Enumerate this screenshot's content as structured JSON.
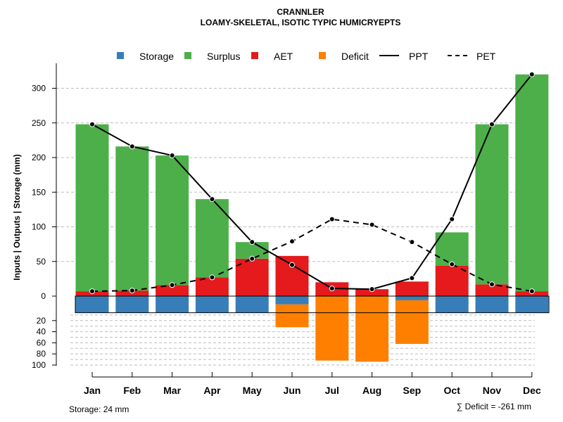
{
  "chart_data": {
    "type": "bar",
    "title": "CRANNLER",
    "subtitle": "LOAMY-SKELETAL, ISOTIC TYPIC HUMICRYEPTS",
    "ylabel": "Inputs | Outputs | Storage    (mm)",
    "categories": [
      "Jan",
      "Feb",
      "Mar",
      "Apr",
      "May",
      "Jun",
      "Jul",
      "Aug",
      "Sep",
      "Oct",
      "Nov",
      "Dec"
    ],
    "ylim": [
      -100,
      320
    ],
    "y_ticks": [
      300,
      250,
      200,
      150,
      100,
      50,
      0
    ],
    "y_ticks_negative": [
      20,
      40,
      60,
      80,
      100
    ],
    "legend": [
      "Storage",
      "Surplus",
      "AET",
      "Deficit",
      "PPT",
      "PET"
    ],
    "colors": {
      "storage": "#377eb8",
      "surplus": "#4daf4a",
      "aet": "#e41a1c",
      "deficit": "#ff7f00",
      "line": "#000000",
      "grid": "#bdbdbd"
    },
    "series": [
      {
        "name": "AET",
        "values": [
          7,
          8,
          16,
          27,
          54,
          58,
          20,
          10,
          21,
          44,
          17,
          7
        ]
      },
      {
        "name": "Surplus",
        "values": [
          241,
          208,
          187,
          113,
          24,
          0,
          0,
          0,
          0,
          48,
          231,
          313
        ]
      },
      {
        "name": "Storage",
        "values": [
          24,
          24,
          24,
          24,
          24,
          12,
          0,
          0,
          6,
          24,
          24,
          24
        ]
      },
      {
        "name": "Deficit",
        "values": [
          0,
          0,
          0,
          0,
          0,
          20,
          92,
          94,
          56,
          0,
          0,
          0
        ]
      },
      {
        "name": "PPT",
        "values": [
          248,
          216,
          203,
          140,
          78,
          45,
          11,
          10,
          26,
          111,
          248,
          320
        ]
      },
      {
        "name": "PET",
        "values": [
          7,
          8,
          16,
          27,
          54,
          79,
          111,
          103,
          78,
          46,
          17,
          7
        ]
      }
    ],
    "storage_capacity_mm": 24,
    "notes": {
      "storage": "Storage: 24 mm",
      "deficit": "∑ Deficit = -261 mm"
    }
  }
}
